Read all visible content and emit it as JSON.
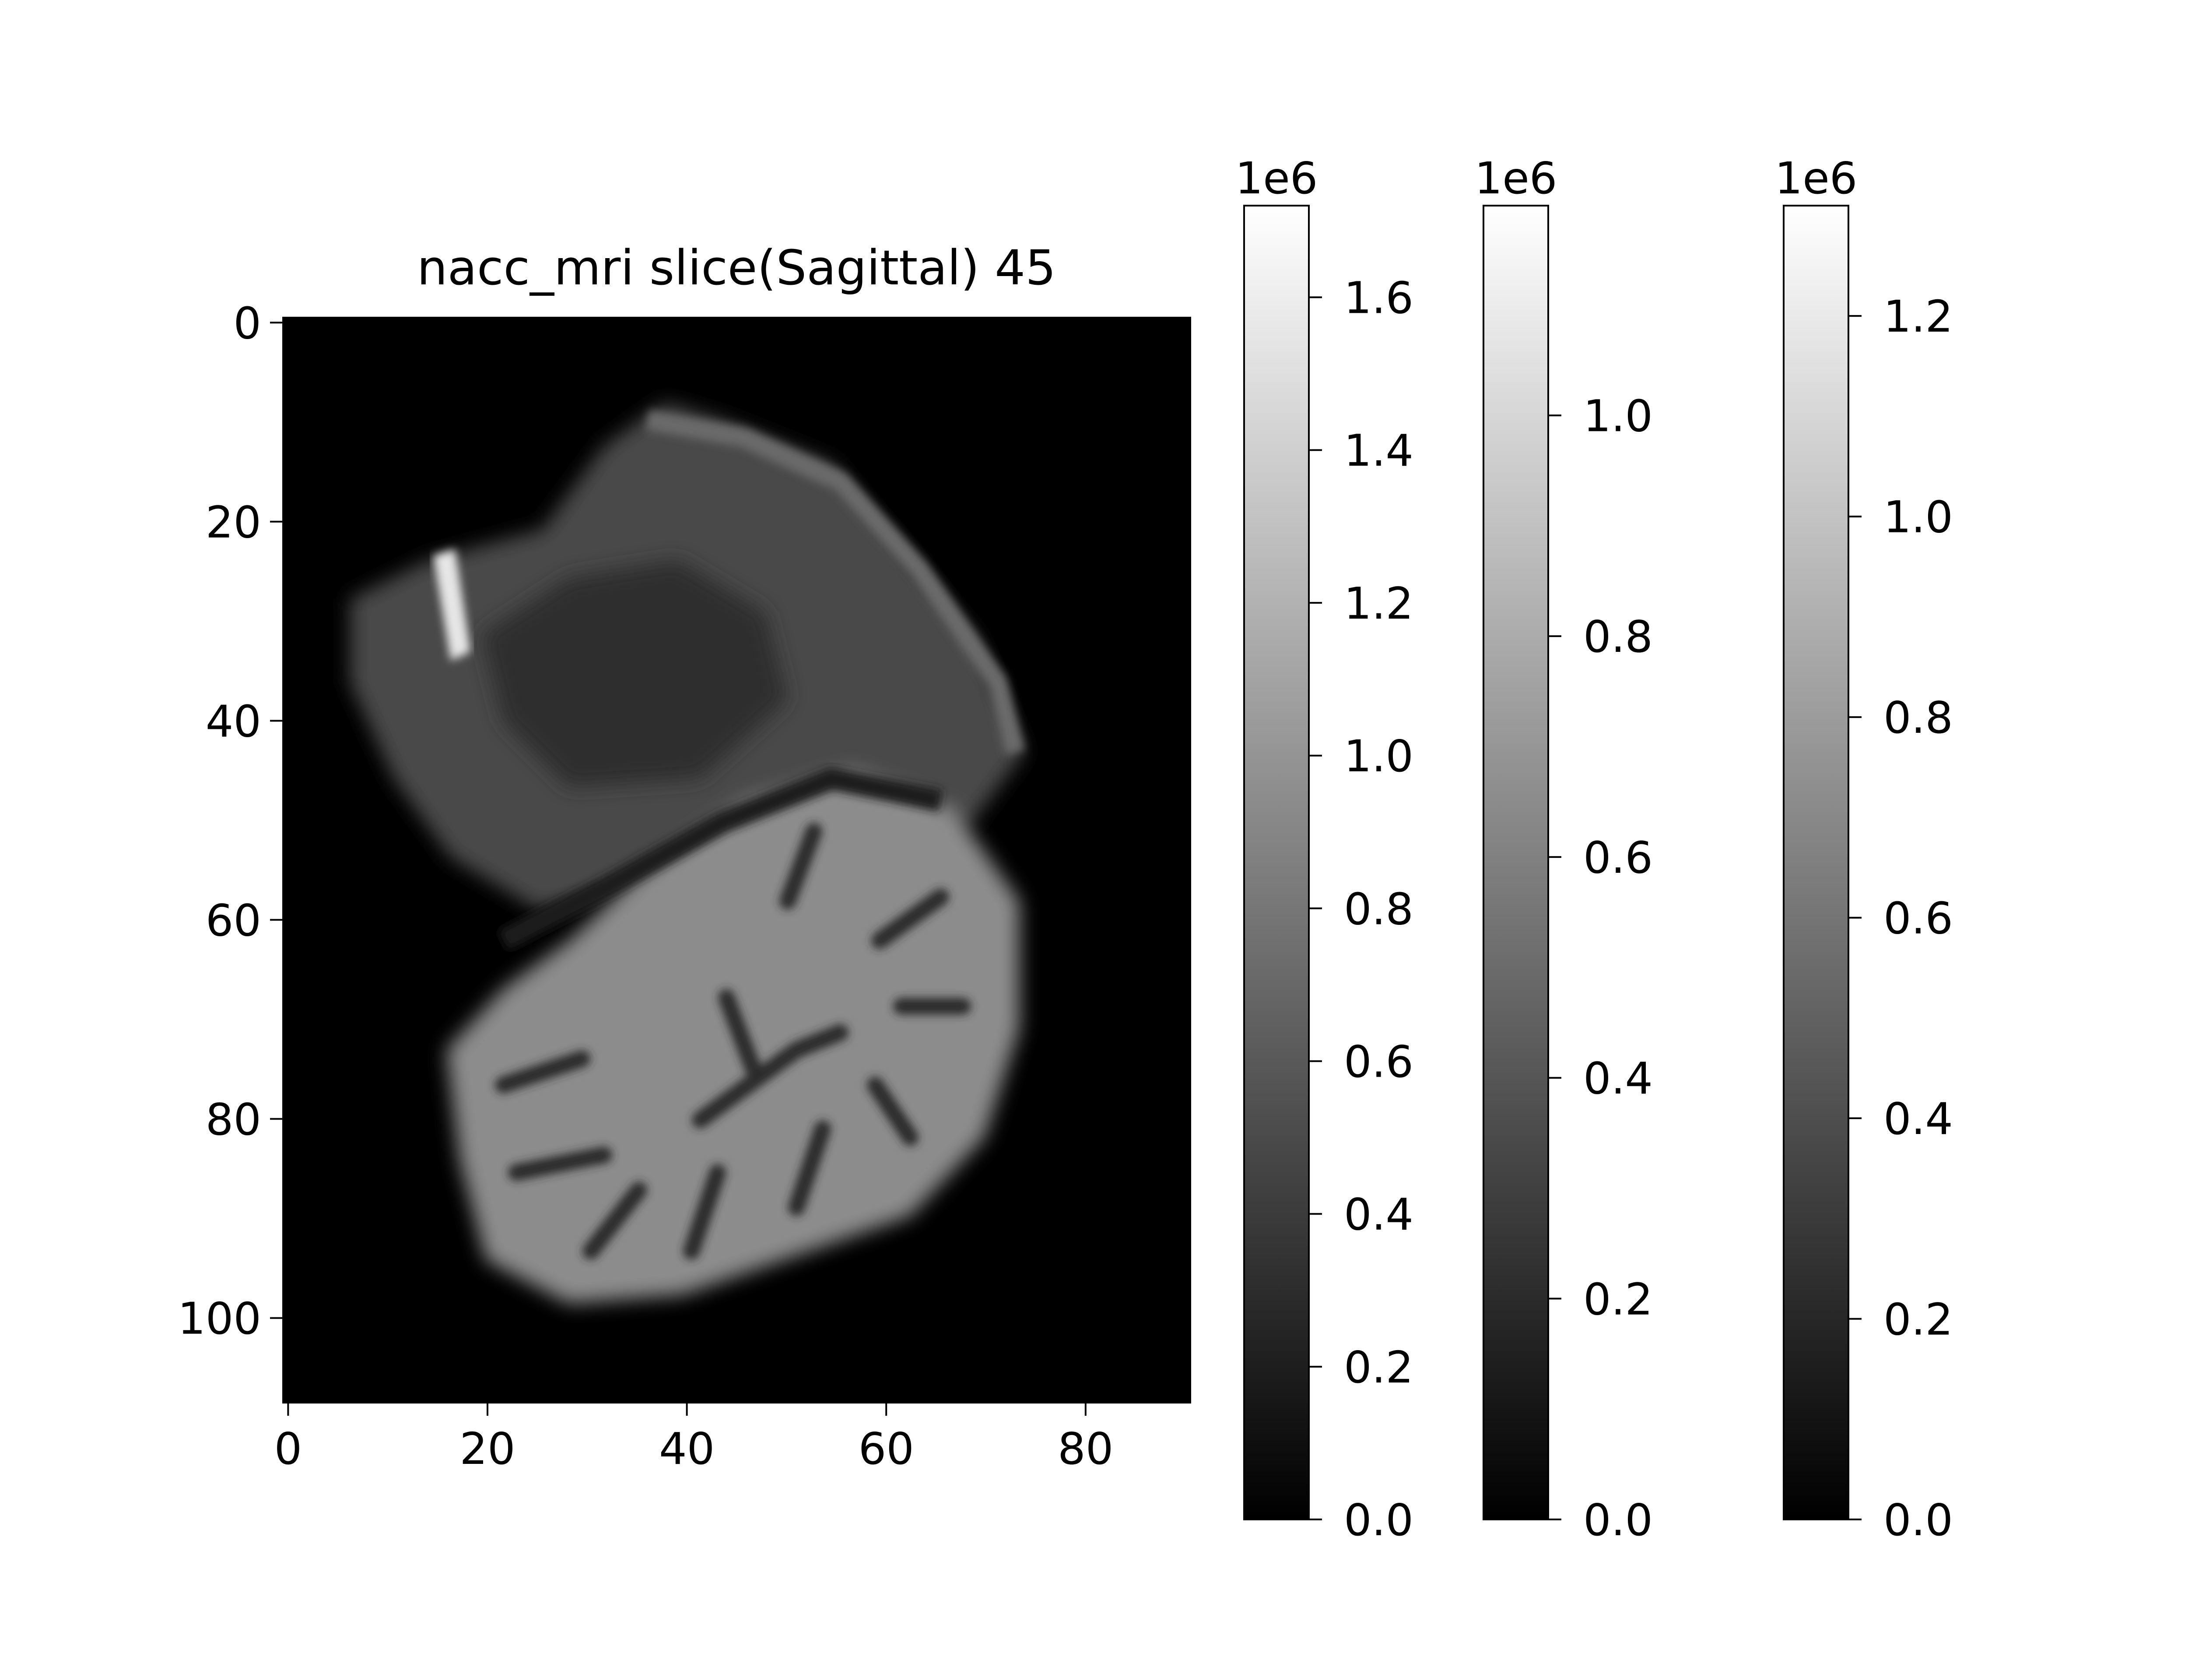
{
  "chart_data": [
    {
      "type": "heatmap",
      "title": "nacc_mri slice(Sagittal) 45",
      "xlabel": "",
      "ylabel": "",
      "xlim": [
        -0.5,
        90.5
      ],
      "ylim": [
        108.5,
        -0.5
      ],
      "x_ticks": [
        0,
        20,
        40,
        60,
        80
      ],
      "y_ticks": [
        0,
        20,
        40,
        60,
        80,
        100
      ],
      "colormap": "gray",
      "grid": false,
      "image_description_visible": "grayscale sagittal brain MRI slice"
    },
    {
      "type": "colorbar",
      "offset_label": "1e6",
      "range": [
        0.0,
        1.72
      ],
      "ticks": [
        0.0,
        0.2,
        0.4,
        0.6,
        0.8,
        1.0,
        1.2,
        1.4,
        1.6
      ],
      "tick_labels": [
        "0.0",
        "0.2",
        "0.4",
        "0.6",
        "0.8",
        "1.0",
        "1.2",
        "1.4",
        "1.6"
      ]
    },
    {
      "type": "colorbar",
      "offset_label": "1e6",
      "range": [
        0.0,
        1.19
      ],
      "ticks": [
        0.0,
        0.2,
        0.4,
        0.6,
        0.8,
        1.0
      ],
      "tick_labels": [
        "0.0",
        "0.2",
        "0.4",
        "0.6",
        "0.8",
        "1.0"
      ]
    },
    {
      "type": "colorbar",
      "offset_label": "1e6",
      "range": [
        0.0,
        1.31
      ],
      "ticks": [
        0.0,
        0.2,
        0.4,
        0.6,
        0.8,
        1.0,
        1.2
      ],
      "tick_labels": [
        "0.0",
        "0.2",
        "0.4",
        "0.6",
        "0.8",
        "1.0",
        "1.2"
      ]
    }
  ]
}
